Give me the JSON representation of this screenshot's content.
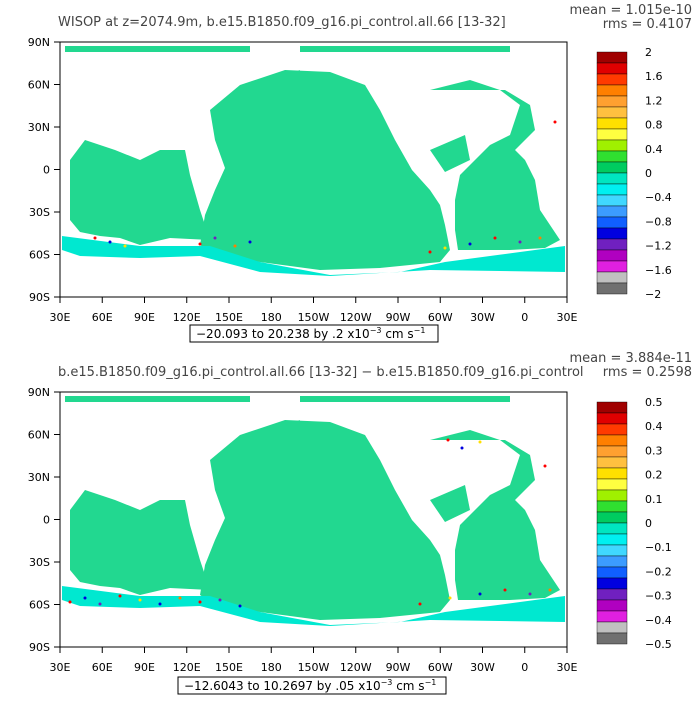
{
  "panels": [
    {
      "title": "WISOP at z=2074.9m, b.e15.B1850.f09_g16.pi_control.all.66 [13-32]",
      "mean": "mean = 1.015e-10",
      "rms": "rms = 0.4107",
      "range": "−20.093 to 20.238 by .2 x10",
      "exp": "−3",
      "units": " cm s",
      "units_exp": "−1",
      "colorbar_labels": [
        "2",
        "1.6",
        "1.2",
        "0.8",
        "0.4",
        "0",
        "−0.4",
        "−0.8",
        "−1.2",
        "−1.6",
        "−2"
      ],
      "colorbar_colors": [
        "#a00000",
        "#e00000",
        "#ff3a00",
        "#ff7f00",
        "#ffa030",
        "#ffc040",
        "#ffe000",
        "#ffff40",
        "#a0f000",
        "#30e030",
        "#00cc60",
        "#00e6c0",
        "#00f0f0",
        "#40d8ff",
        "#3c9cff",
        "#1060ff",
        "#0000e0",
        "#7020c0",
        "#b000c0",
        "#e020e0",
        "#c0c0c0",
        "#707070"
      ]
    },
    {
      "title": "b.e15.B1850.f09_g16.pi_control.all.66 [13-32] − b.e15.B1850.f09_g16.pi_control",
      "mean": "mean = 3.884e-11",
      "rms": "rms = 0.2598",
      "range": "−12.6043 to 10.2697 by .05 x10",
      "exp": "−3",
      "units": " cm s",
      "units_exp": "−1",
      "colorbar_labels": [
        "0.5",
        "0.4",
        "0.3",
        "0.2",
        "0.1",
        "0",
        "−0.1",
        "−0.2",
        "−0.3",
        "−0.4",
        "−0.5"
      ],
      "colorbar_colors": [
        "#a00000",
        "#e00000",
        "#ff3a00",
        "#ff7f00",
        "#ffa030",
        "#ffc040",
        "#ffe000",
        "#ffff40",
        "#a0f000",
        "#30e030",
        "#00cc60",
        "#00e6c0",
        "#00f0f0",
        "#40d8ff",
        "#3c9cff",
        "#1060ff",
        "#0000e0",
        "#7020c0",
        "#b000c0",
        "#e020e0",
        "#c0c0c0",
        "#707070"
      ]
    }
  ],
  "lat_labels": [
    "90N",
    "60N",
    "30N",
    "0",
    "30S",
    "60S",
    "90S"
  ],
  "lon_labels": [
    "30E",
    "60E",
    "90E",
    "120E",
    "150E",
    "180",
    "150W",
    "120W",
    "90W",
    "60W",
    "30W",
    "0",
    "30E"
  ],
  "ocean_color": "#22d890",
  "ocean_alt_color": "#00e8d0"
}
